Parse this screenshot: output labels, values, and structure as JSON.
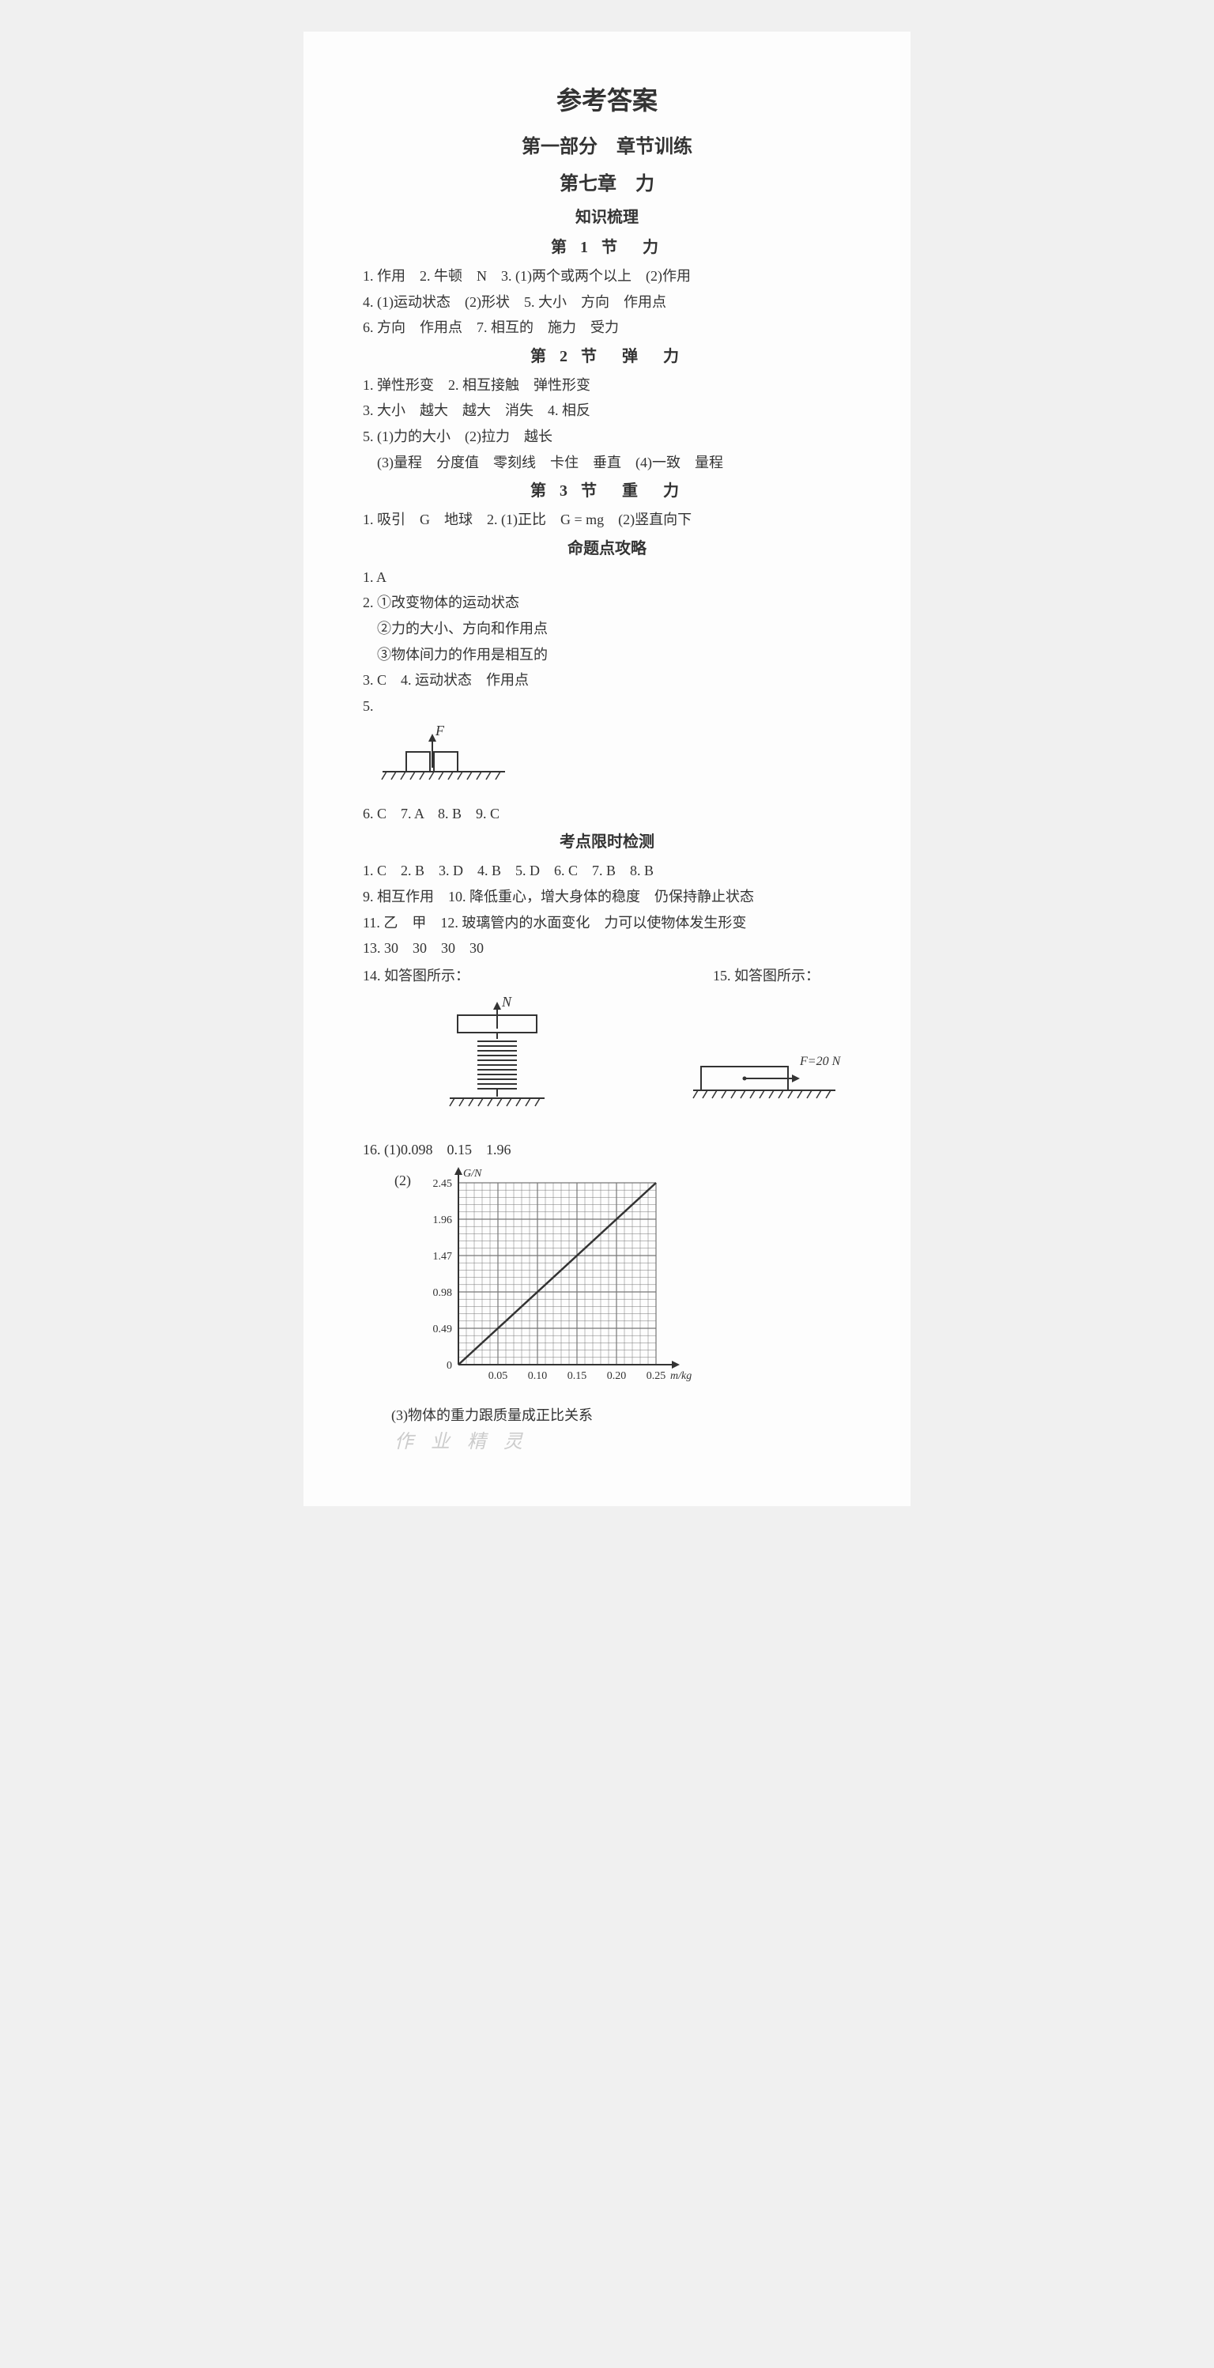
{
  "title": "参考答案",
  "part": "第一部分　章节训练",
  "chapter": "第七章　力",
  "section_knowledge": "知识梳理",
  "node1": {
    "title": "第 1 节　力",
    "lines": [
      "1. 作用　2. 牛顿　N　3. (1)两个或两个以上　(2)作用",
      "4. (1)运动状态　(2)形状　5. 大小　方向　作用点",
      "6. 方向　作用点　7. 相互的　施力　受力"
    ]
  },
  "node2": {
    "title": "第 2 节　弹　力",
    "lines": [
      "1. 弹性形变　2. 相互接触　弹性形变",
      "3. 大小　越大　越大　消失　4. 相反",
      "5. (1)力的大小　(2)拉力　越长",
      "　(3)量程　分度值　零刻线　卡住　垂直　(4)一致　量程"
    ]
  },
  "node3": {
    "title": "第 3 节　重　力",
    "lines": [
      "1. 吸引　G　地球　2. (1)正比　G = mg　(2)竖直向下"
    ]
  },
  "section_attack": "命题点攻略",
  "attack": {
    "lines_a": [
      "1. A",
      "2. ①改变物体的运动状态",
      "　②力的大小、方向和作用点",
      "　③物体间力的作用是相互的",
      "3. C　4. 运动状态　作用点",
      "5."
    ],
    "label_F": "F",
    "lines_b": [
      "6. C　7. A　8. B　9. C"
    ]
  },
  "section_test": "考点限时检测",
  "test": {
    "lines_a": [
      "1. C　2. B　3. D　4. B　5. D　6. C　7. B　8. B",
      "9. 相互作用　10. 降低重心，增大身体的稳度　仍保持静止状态",
      "11. 乙　甲　12. 玻璃管内的水面变化　力可以使物体发生形变",
      "13. 30　30　30　30"
    ],
    "q14_label": "14. 如答图所示：",
    "q15_label": "15. 如答图所示：",
    "label_N": "N",
    "label_F20": "F=20 N",
    "q16_line1": "16. (1)0.098　0.15　1.96",
    "q16_line2_prefix": "(2)",
    "q16_line3": "(3)物体的重力跟质量成正比关系"
  },
  "chart": {
    "y_label": "G/N",
    "x_label": "m/kg",
    "y_ticks": [
      "2.45",
      "1.96",
      "1.47",
      "0.98",
      "0.49",
      "0"
    ],
    "x_ticks": [
      "0.05",
      "0.10",
      "0.15",
      "0.20",
      "0.25"
    ],
    "grid_major": 5,
    "grid_minor": 25,
    "line_color": "#333333",
    "grid_color": "#777777",
    "background": "#fdfdfd",
    "data_line": {
      "x1": 0,
      "y1": 0,
      "x2": 0.25,
      "y2": 2.45
    }
  },
  "watermark": "作 业 精 灵"
}
